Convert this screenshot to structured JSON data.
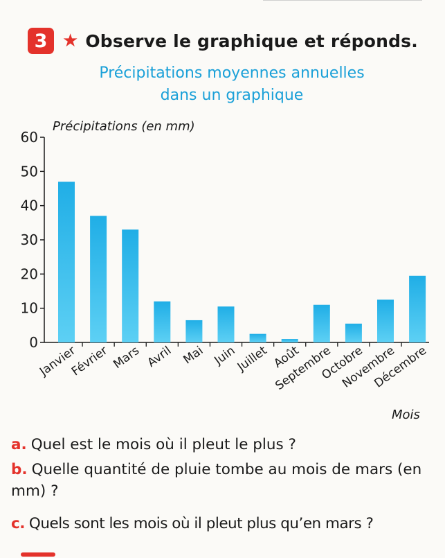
{
  "header": {
    "number": "3",
    "star": "★",
    "instruction": "Observe le graphique et réponds."
  },
  "chart_title_lines": [
    "Précipitations moyennes annuelles",
    "dans un graphique"
  ],
  "chart_data": {
    "type": "bar",
    "ylabel": "Précipitations (en mm)",
    "xlabel": "Mois",
    "ylim": [
      0,
      60
    ],
    "yticks": [
      0,
      10,
      20,
      30,
      40,
      50,
      60
    ],
    "categories": [
      "Janvier",
      "Février",
      "Mars",
      "Avril",
      "Mai",
      "Juin",
      "Juillet",
      "Août",
      "Septembre",
      "Octobre",
      "Novembre",
      "Décembre"
    ],
    "values": [
      47,
      37,
      33,
      12,
      6.5,
      10.5,
      2.5,
      1,
      11,
      5.5,
      12.5,
      19.5
    ],
    "bar_color": "#29b8ea",
    "grid": false
  },
  "questions": {
    "a": {
      "letter": "a.",
      "text": "Quel est le mois où il pleut le plus ?"
    },
    "b": {
      "letter": "b.",
      "text": "Quelle quantité de pluie tombe au mois de mars (en mm) ?"
    },
    "c": {
      "letter": "c.",
      "text": "Quels sont les mois où il pleut plus qu’en mars ?"
    }
  },
  "colors": {
    "accent": "#e4322b",
    "title": "#1aa0d8"
  }
}
